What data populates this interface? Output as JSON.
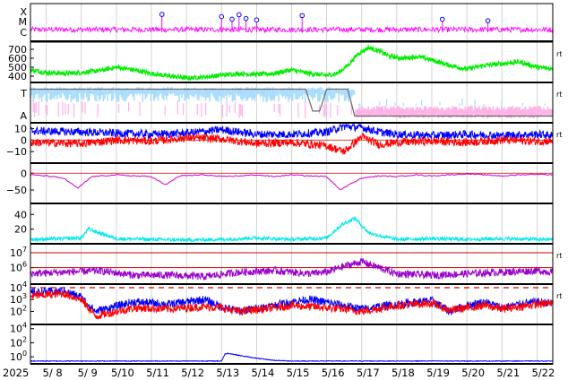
{
  "chart_data": {
    "type": "line",
    "title": "",
    "x_axis": {
      "year_label": "2025",
      "tick_labels": [
        "5/ 8",
        "5/ 9",
        "5/10",
        "5/11",
        "5/12",
        "5/13",
        "5/14",
        "5/15",
        "5/16",
        "5/17",
        "5/18",
        "5/19",
        "5/20",
        "5/21",
        "5/22"
      ],
      "range_days": [
        7.55,
        22.45
      ]
    },
    "panels": [
      {
        "id": "xray-flares",
        "type": "line",
        "y_tick_labels": [
          "X",
          "M",
          "C"
        ],
        "series": [
          {
            "color": "#ff00ff",
            "level_min": 0.4,
            "level_max": 1.0
          }
        ],
        "flare_markers": [
          11.3,
          13.0,
          13.3,
          13.5,
          13.7,
          14.0,
          15.3,
          19.3,
          20.6
        ]
      },
      {
        "id": "solar-wind-speed",
        "type": "line",
        "y_tick_labels": [
          "700",
          "600",
          "500",
          "400"
        ],
        "ylim": [
          330,
          780
        ],
        "side_mark": "rt",
        "series": [
          {
            "color": "#00ee00",
            "x": [
              7.55,
              8.0,
              8.5,
              9.0,
              9.5,
              10.0,
              10.5,
              11.0,
              11.5,
              12.0,
              12.5,
              13.0,
              13.5,
              14.0,
              14.5,
              15.0,
              15.5,
              16.0,
              16.3,
              16.6,
              16.9,
              17.2,
              17.5,
              17.8,
              18.2,
              18.6,
              19.0,
              19.5,
              20.0,
              20.5,
              21.0,
              21.5,
              22.0,
              22.45
            ],
            "values": [
              470,
              440,
              430,
              440,
              460,
              500,
              470,
              430,
              400,
              380,
              390,
              410,
              430,
              420,
              430,
              470,
              430,
              410,
              430,
              520,
              650,
              720,
              680,
              620,
              600,
              620,
              580,
              520,
              480,
              520,
              540,
              560,
              500,
              480
            ]
          }
        ]
      },
      {
        "id": "imf-sector",
        "type": "area",
        "y_tick_labels": [
          "T",
          "A"
        ],
        "side_mark": "rt",
        "colors": {
          "toward": "#a8dcff",
          "away": "#ffb0e6",
          "trace": "#666666"
        },
        "trace_x": [
          7.55,
          15.4,
          15.6,
          15.8,
          16.0,
          16.6,
          16.8,
          22.45
        ],
        "trace_values": [
          0.8,
          0.8,
          -0.5,
          -0.5,
          0.8,
          0.8,
          -0.8,
          -0.8
        ]
      },
      {
        "id": "imf-bz",
        "type": "line",
        "y_tick_labels": [
          "10",
          "0",
          "−10"
        ],
        "ylim": [
          -20,
          15
        ],
        "side_mark": "rt",
        "series": [
          {
            "color": "#0000ff",
            "x": [
              7.55,
              9,
              10,
              11,
              12,
              13,
              14,
              15,
              16,
              16.5,
              17,
              17.5,
              18,
              19,
              20,
              21,
              22,
              22.45
            ],
            "values": [
              8,
              7,
              6,
              5,
              6,
              9,
              5,
              5,
              7,
              12,
              11,
              7,
              5,
              4,
              5,
              4,
              5,
              4
            ]
          },
          {
            "color": "#ff0000",
            "x": [
              7.55,
              9,
              10,
              11,
              12,
              13,
              14,
              15,
              16,
              16.5,
              17,
              17.5,
              18,
              19,
              20,
              21,
              22,
              22.45
            ],
            "values": [
              -2,
              -3,
              0,
              -1,
              2,
              1,
              -3,
              -2,
              -5,
              -10,
              3,
              -4,
              -2,
              -1,
              -2,
              0,
              -1,
              -1
            ]
          }
        ]
      },
      {
        "id": "dst-index",
        "type": "line",
        "y_tick_labels": [
          "0",
          "−50"
        ],
        "ylim": [
          -90,
          30
        ],
        "series": [
          {
            "color": "#cc00cc",
            "x": [
              7.55,
              8.0,
              8.5,
              8.9,
              9.3,
              10.0,
              10.5,
              11.0,
              11.4,
              11.8,
              12.5,
              13.0,
              13.5,
              14.0,
              14.5,
              15.0,
              15.5,
              16.0,
              16.4,
              16.7,
              17.0,
              17.5,
              18.0,
              18.5,
              19.0,
              19.5,
              20.0,
              20.5,
              21.0,
              21.5,
              22.0,
              22.45
            ],
            "values": [
              -5,
              -8,
              -15,
              -45,
              -10,
              -5,
              -8,
              -10,
              -35,
              -8,
              -5,
              -10,
              -8,
              -5,
              -10,
              -5,
              -8,
              -10,
              -50,
              -30,
              -15,
              -8,
              -10,
              -5,
              -8,
              -5,
              -2,
              -5,
              -8,
              -5,
              -3,
              -5
            ]
          }
        ]
      },
      {
        "id": "proton-density",
        "type": "line",
        "y_tick_labels": [
          "40",
          "20"
        ],
        "ylim": [
          0,
          55
        ],
        "series": [
          {
            "color": "#00e8e8",
            "x": [
              7.55,
              8.5,
              9.0,
              9.2,
              10,
              11,
              12,
              13,
              14,
              15,
              16.0,
              16.4,
              16.8,
              17.2,
              17.6,
              18,
              19,
              20,
              21,
              22,
              22.45
            ],
            "values": [
              6,
              7,
              8,
              20,
              7,
              6,
              5,
              6,
              8,
              6,
              8,
              25,
              35,
              15,
              10,
              6,
              7,
              6,
              7,
              6,
              6
            ]
          }
        ]
      },
      {
        "id": "electron-flux",
        "type": "line",
        "y_tick_labels": [
          "10^7",
          "10^6"
        ],
        "log_scale": true,
        "ylim_exp": [
          4.9,
          7.6
        ],
        "reference_levels_exp": [
          7.0,
          6.0
        ],
        "side_mark": "rt",
        "series": [
          {
            "color": "#9900cc",
            "x": [
              7.55,
              8.5,
              9.5,
              10.5,
              11.5,
              12.5,
              13.5,
              14.5,
              15.5,
              16.0,
              16.5,
              17.0,
              17.5,
              18.0,
              19.0,
              20.0,
              21.0,
              22.0,
              22.45
            ],
            "values_exp": [
              5.6,
              5.7,
              5.8,
              5.5,
              5.5,
              5.4,
              5.7,
              5.8,
              5.6,
              5.7,
              6.1,
              6.4,
              6.0,
              5.6,
              5.5,
              5.6,
              5.7,
              5.8,
              5.7
            ]
          }
        ]
      },
      {
        "id": "proton-flux",
        "type": "line",
        "y_tick_labels": [
          "10^4",
          "10^3",
          "10^2"
        ],
        "log_scale": true,
        "ylim_exp": [
          0.9,
          4.3
        ],
        "reference_level_exp": 4.0,
        "side_mark": "rt",
        "series": [
          {
            "color": "#0000ff",
            "x": [
              7.55,
              8.5,
              9.0,
              9.4,
              10.5,
              11.5,
              12.5,
              13.0,
              13.5,
              14.5,
              15.0,
              15.5,
              16.5,
              17.0,
              18.0,
              19.0,
              19.5,
              20.0,
              20.5,
              21.0,
              21.5,
              22.0,
              22.45
            ],
            "values_exp": [
              3.6,
              3.7,
              3.2,
              2.0,
              2.8,
              2.6,
              3.0,
              2.4,
              2.0,
              2.5,
              2.8,
              3.0,
              2.5,
              2.2,
              2.6,
              2.9,
              2.0,
              2.5,
              2.8,
              2.3,
              2.6,
              2.8,
              2.7
            ]
          },
          {
            "color": "#ff0000",
            "x": [
              7.55,
              8.5,
              9.0,
              9.4,
              10.5,
              11.5,
              12.5,
              13.0,
              13.5,
              14.5,
              15.0,
              15.5,
              16.5,
              17.0,
              18.0,
              19.0,
              19.5,
              20.0,
              20.5,
              21.0,
              21.5,
              22.0,
              22.45
            ],
            "values_exp": [
              3.3,
              3.5,
              3.0,
              1.6,
              2.3,
              2.2,
              2.4,
              2.3,
              2.0,
              2.3,
              2.5,
              2.4,
              2.2,
              2.0,
              2.5,
              2.7,
              2.1,
              2.3,
              2.5,
              2.2,
              2.4,
              2.6,
              2.7
            ]
          }
        ]
      },
      {
        "id": "high-energy-protons",
        "type": "line",
        "y_tick_labels": [
          "10^4",
          "10^2",
          "10^0"
        ],
        "log_scale": true,
        "ylim_exp": [
          -1.0,
          4.6
        ],
        "series": [
          {
            "color": "#0000ff",
            "x": [
              7.55,
              12.0,
              13.0,
              13.1,
              13.2,
              13.5,
              14.0,
              14.5,
              15.0,
              22.45
            ],
            "values_exp": [
              -0.6,
              -0.6,
              -0.6,
              0.4,
              0.5,
              0.2,
              -0.2,
              -0.5,
              -0.6,
              -0.6
            ]
          }
        ]
      }
    ]
  }
}
